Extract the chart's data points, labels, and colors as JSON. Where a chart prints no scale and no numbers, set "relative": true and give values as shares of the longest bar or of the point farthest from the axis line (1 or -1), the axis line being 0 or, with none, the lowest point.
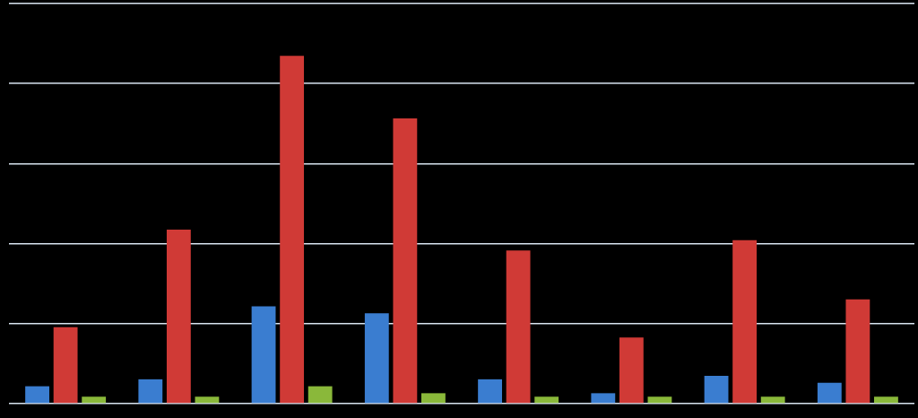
{
  "chart_data": {
    "type": "bar",
    "relative": true,
    "grid": "y",
    "legend": false,
    "categories": [
      null,
      null,
      null,
      null,
      null,
      null,
      null,
      null
    ],
    "series": [
      {
        "color": "#3a7dd0",
        "values": [
          0.05,
          0.07,
          0.28,
          0.26,
          0.07,
          0.03,
          0.08,
          0.06
        ]
      },
      {
        "color": "#d03a36",
        "values": [
          0.22,
          0.5,
          1,
          0.82,
          0.44,
          0.19,
          0.47,
          0.3
        ]
      },
      {
        "color": "#8ab83a",
        "values": [
          0.02,
          0.02,
          0.05,
          0.03,
          0.02,
          0.02,
          0.02,
          0.02
        ]
      }
    ]
  }
}
